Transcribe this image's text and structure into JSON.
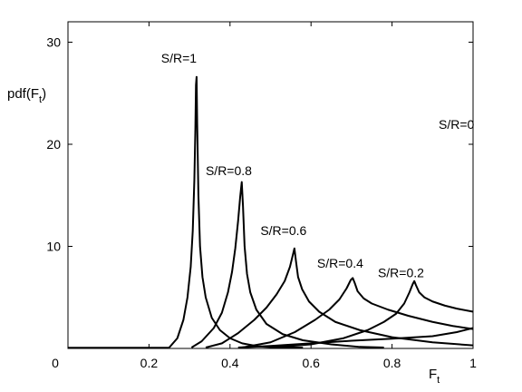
{
  "chart_data": {
    "type": "line",
    "title": "",
    "xlabel": "F",
    "xlabel_sub": "t",
    "ylabel": "pdf(F",
    "ylabel_sub": "t",
    "ylabel_close": ")",
    "xlim": [
      0,
      1
    ],
    "ylim": [
      0,
      32
    ],
    "xticks": [
      {
        "value": 0,
        "label": "0"
      },
      {
        "value": 0.2,
        "label": "0.2"
      },
      {
        "value": 0.4,
        "label": "0.4"
      },
      {
        "value": 0.6,
        "label": "0.6"
      },
      {
        "value": 0.8,
        "label": "0.8"
      },
      {
        "value": 1,
        "label": "1"
      }
    ],
    "yticks": [
      {
        "value": 10,
        "label": "10"
      },
      {
        "value": 20,
        "label": "20"
      },
      {
        "value": 30,
        "label": "30"
      }
    ],
    "grid": false,
    "legend": "none",
    "line_color": "#000000",
    "series": [
      {
        "label_text": "S/R=1",
        "label_x": 0.23,
        "label_y": 28.0,
        "points": [
          [
            0.25,
            0
          ],
          [
            0.27,
            1.0
          ],
          [
            0.285,
            2.8
          ],
          [
            0.295,
            5.0
          ],
          [
            0.303,
            8.0
          ],
          [
            0.308,
            11.5
          ],
          [
            0.312,
            16.5
          ],
          [
            0.3145,
            21.5
          ],
          [
            0.316,
            25.8
          ],
          [
            0.3175,
            26.6
          ],
          [
            0.319,
            22.0
          ],
          [
            0.322,
            15.0
          ],
          [
            0.326,
            10.0
          ],
          [
            0.332,
            7.0
          ],
          [
            0.34,
            5.0
          ],
          [
            0.355,
            3.0
          ],
          [
            0.375,
            1.8
          ],
          [
            0.4,
            1.0
          ],
          [
            0.43,
            0.5
          ],
          [
            0.47,
            0.2
          ],
          [
            0.52,
            0.05
          ],
          [
            0.58,
            0
          ]
        ]
      },
      {
        "label_text": "S/R=0.8",
        "label_x": 0.34,
        "label_y": 17.0,
        "points": [
          [
            0.305,
            0
          ],
          [
            0.33,
            0.7
          ],
          [
            0.36,
            2.0
          ],
          [
            0.38,
            3.5
          ],
          [
            0.395,
            5.5
          ],
          [
            0.405,
            7.5
          ],
          [
            0.413,
            9.8
          ],
          [
            0.42,
            12.5
          ],
          [
            0.425,
            14.8
          ],
          [
            0.429,
            16.3
          ],
          [
            0.432,
            14.0
          ],
          [
            0.436,
            10.0
          ],
          [
            0.442,
            7.3
          ],
          [
            0.45,
            5.5
          ],
          [
            0.465,
            3.8
          ],
          [
            0.49,
            2.4
          ],
          [
            0.53,
            1.4
          ],
          [
            0.58,
            0.8
          ],
          [
            0.65,
            0.4
          ],
          [
            0.72,
            0.15
          ],
          [
            0.78,
            0
          ]
        ]
      },
      {
        "label_text": "S/R=0.6",
        "label_x": 0.475,
        "label_y": 11.1,
        "points": [
          [
            0.34,
            0
          ],
          [
            0.38,
            0.5
          ],
          [
            0.42,
            1.5
          ],
          [
            0.46,
            2.8
          ],
          [
            0.49,
            4.0
          ],
          [
            0.515,
            5.3
          ],
          [
            0.535,
            6.6
          ],
          [
            0.548,
            8.0
          ],
          [
            0.556,
            9.3
          ],
          [
            0.559,
            9.8
          ],
          [
            0.563,
            8.5
          ],
          [
            0.568,
            7.0
          ],
          [
            0.578,
            5.8
          ],
          [
            0.595,
            4.6
          ],
          [
            0.62,
            3.6
          ],
          [
            0.66,
            2.6
          ],
          [
            0.72,
            1.8
          ],
          [
            0.8,
            1.1
          ],
          [
            0.9,
            0.6
          ],
          [
            1.0,
            0.3
          ]
        ]
      },
      {
        "label_text": "S/R=0.4",
        "label_x": 0.615,
        "label_y": 7.9,
        "points": [
          [
            0.43,
            0
          ],
          [
            0.5,
            0.6
          ],
          [
            0.56,
            1.6
          ],
          [
            0.61,
            2.8
          ],
          [
            0.645,
            3.8
          ],
          [
            0.67,
            4.8
          ],
          [
            0.688,
            5.9
          ],
          [
            0.698,
            6.7
          ],
          [
            0.703,
            6.9
          ],
          [
            0.708,
            6.4
          ],
          [
            0.715,
            5.6
          ],
          [
            0.73,
            4.9
          ],
          [
            0.75,
            4.4
          ],
          [
            0.79,
            3.8
          ],
          [
            0.84,
            3.2
          ],
          [
            0.9,
            2.6
          ],
          [
            0.95,
            2.2
          ],
          [
            1.0,
            1.9
          ]
        ]
      },
      {
        "label_text": "S/R=0.2",
        "label_x": 0.765,
        "label_y": 7.0,
        "points": [
          [
            0.5,
            0
          ],
          [
            0.6,
            0.4
          ],
          [
            0.68,
            1.0
          ],
          [
            0.74,
            1.8
          ],
          [
            0.78,
            2.6
          ],
          [
            0.81,
            3.4
          ],
          [
            0.83,
            4.4
          ],
          [
            0.843,
            5.5
          ],
          [
            0.851,
            6.3
          ],
          [
            0.855,
            6.6
          ],
          [
            0.859,
            6.2
          ],
          [
            0.867,
            5.5
          ],
          [
            0.88,
            5.0
          ],
          [
            0.9,
            4.6
          ],
          [
            0.93,
            4.2
          ],
          [
            0.96,
            3.9
          ],
          [
            1.0,
            3.6
          ]
        ]
      },
      {
        "label_text": "S/R=0",
        "label_x": 0.915,
        "label_y": 21.5,
        "points": [
          [
            0.42,
            0
          ],
          [
            0.5,
            0.25
          ],
          [
            0.6,
            0.5
          ],
          [
            0.7,
            0.75
          ],
          [
            0.8,
            0.95
          ],
          [
            0.9,
            1.2
          ],
          [
            0.96,
            1.6
          ],
          [
            1.0,
            2.0
          ]
        ]
      }
    ]
  }
}
